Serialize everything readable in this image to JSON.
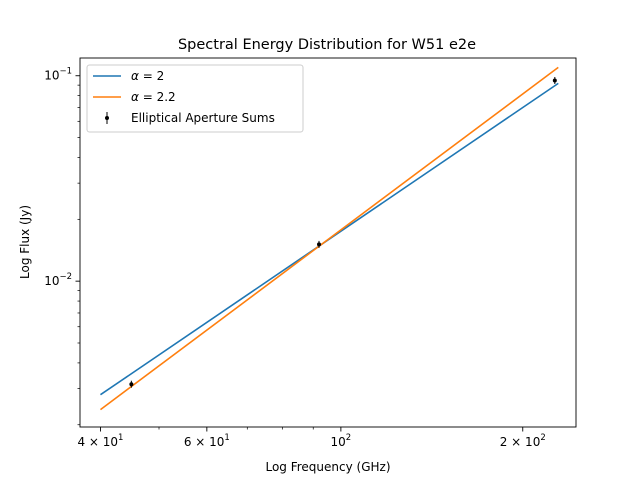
{
  "chart_data": {
    "type": "line",
    "title": "Spectral Energy Distribution for W51 e2e",
    "xlabel": "Log Frequency (GHz)",
    "ylabel": "Log Flux (Jy)",
    "xscale": "log",
    "yscale": "log",
    "xlim": [
      37,
      245
    ],
    "ylim": [
      0.00195,
      0.122
    ],
    "grid": false,
    "legend_position": "top-left",
    "x_tick_labels": [
      {
        "value": 40,
        "base": "4 × 10",
        "exp": "1"
      },
      {
        "value": 60,
        "base": "6 × 10",
        "exp": "1"
      },
      {
        "value": 100,
        "base": "10",
        "exp": "2"
      },
      {
        "value": 200,
        "base": "2 × 10",
        "exp": "2"
      }
    ],
    "y_tick_labels": [
      {
        "value": 0.01,
        "base": "10",
        "exp": "−2"
      },
      {
        "value": 0.1,
        "base": "10",
        "exp": "−1"
      }
    ],
    "series": [
      {
        "name": "α = 2",
        "name_symbol": "α",
        "name_rest": " = 2",
        "kind": "line",
        "color": "#1f77b4",
        "x": [
          40,
          229
        ],
        "y": [
          0.0028,
          0.0918
        ]
      },
      {
        "name": "α = 2.2",
        "name_symbol": "α",
        "name_rest": " = 2.2",
        "kind": "line",
        "color": "#ff7f0e",
        "x": [
          40,
          229
        ],
        "y": [
          0.00237,
          0.1098
        ]
      },
      {
        "name": "Elliptical Aperture Sums",
        "kind": "errorbar",
        "color": "#000000",
        "x": [
          45,
          92,
          226
        ],
        "y": [
          0.00315,
          0.0151,
          0.0948
        ],
        "yerr": [
          5e-05,
          0.0005,
          0.0009
        ]
      }
    ]
  }
}
